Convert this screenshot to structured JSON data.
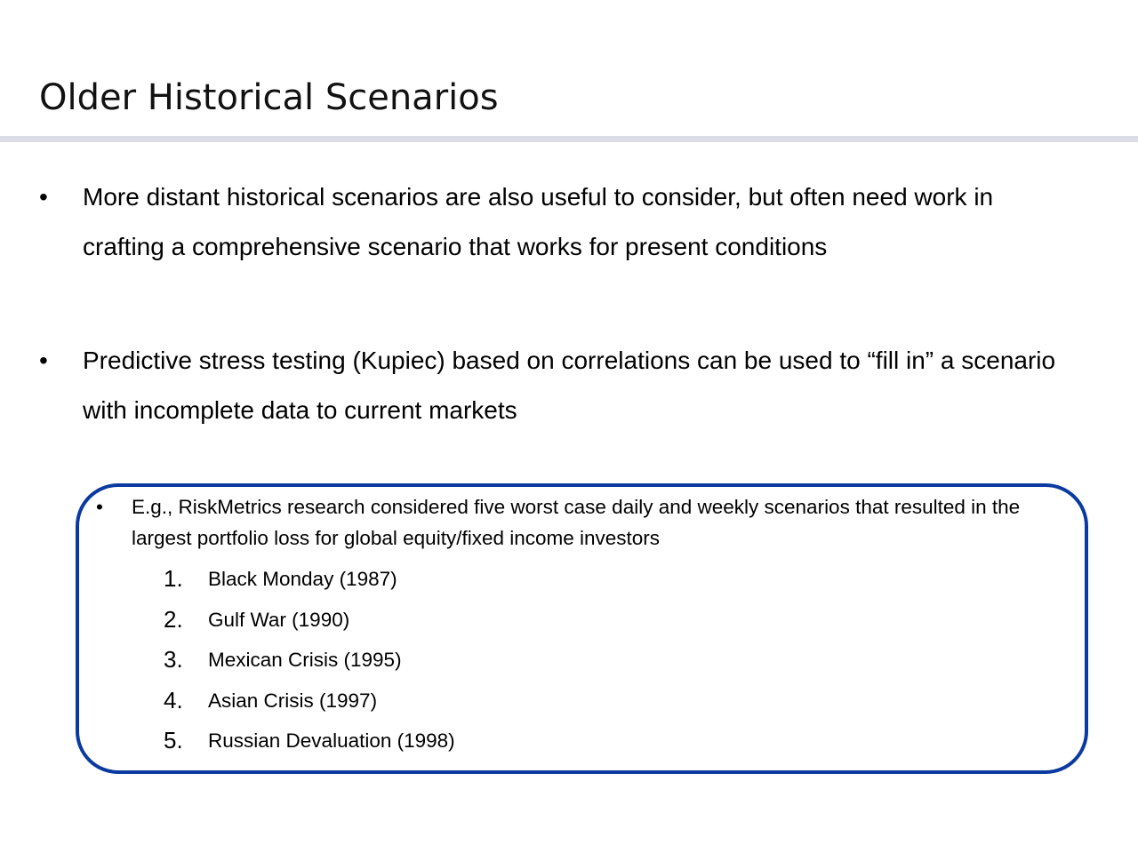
{
  "slide": {
    "title": "Older Historical Scenarios"
  },
  "bullets": [
    {
      "marker": "•",
      "text": "More distant historical scenarios are also useful to consider, but often need work in crafting a comprehensive scenario that works for present conditions"
    },
    {
      "marker": "•",
      "text": "Predictive stress testing (Kupiec) based on correlations can be used to “fill in” a scenario with incomplete data to current markets"
    }
  ],
  "example": {
    "marker": "•",
    "text": "E.g., RiskMetrics research considered five worst case daily and weekly scenarios that resulted in the largest portfolio loss for global equity/fixed income investors",
    "border_color": "#0a3aa0",
    "scenarios": [
      {
        "number": "1.",
        "label": "Black Monday (1987)"
      },
      {
        "number": "2.",
        "label": "Gulf War (1990)"
      },
      {
        "number": "3.",
        "label": "Mexican Crisis (1995)"
      },
      {
        "number": "4.",
        "label": "Asian Crisis (1997)"
      },
      {
        "number": "5.",
        "label": "Russian Devaluation (1998)"
      }
    ]
  },
  "colors": {
    "title_rule": "#dcdce6",
    "text": "#000000"
  }
}
